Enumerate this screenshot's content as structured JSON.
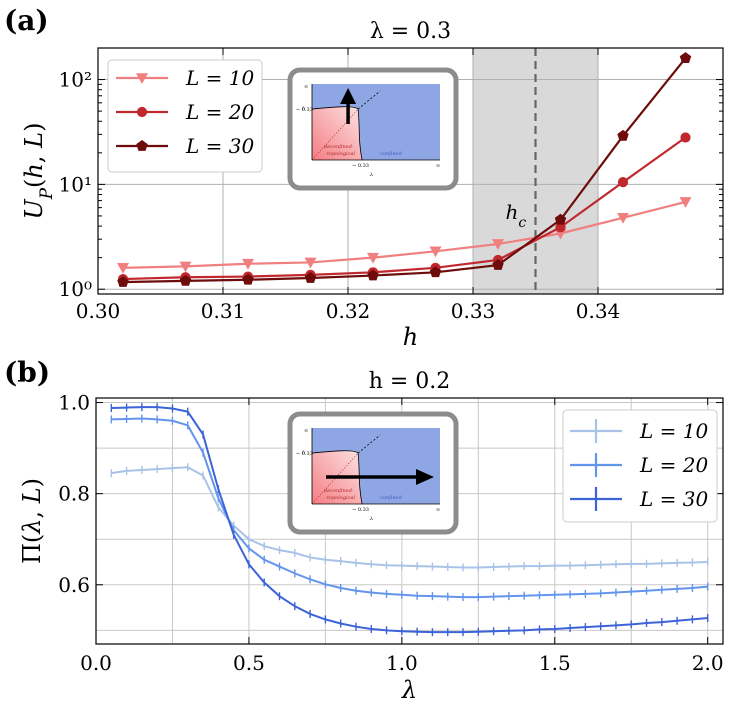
{
  "chart_data": [
    {
      "panel": "(a)",
      "type": "line",
      "title": "λ = 0.3",
      "xlabel": "h",
      "ylabel": "U_P(h, L)",
      "yscale": "log",
      "xlim": [
        0.3,
        0.35
      ],
      "ylim": [
        0.9,
        200
      ],
      "xticks": [
        "0.30",
        "0.31",
        "0.32",
        "0.33",
        "0.34"
      ],
      "xtick_values": [
        0.3,
        0.31,
        0.32,
        0.33,
        0.34
      ],
      "yticks": [
        "10⁰",
        "10¹",
        "10²"
      ],
      "ytick_values": [
        1,
        10,
        100
      ],
      "grid": true,
      "legend_position": "top-left",
      "shaded_band": [
        0.33,
        0.34
      ],
      "vline": {
        "x": 0.335,
        "label": "h_c"
      },
      "x": [
        0.302,
        0.307,
        0.312,
        0.317,
        0.322,
        0.327,
        0.332,
        0.337,
        0.342,
        0.347
      ],
      "series": [
        {
          "name": "L = 10",
          "marker": "triangle-down",
          "color": "#f08080",
          "values": [
            1.6,
            1.65,
            1.75,
            1.8,
            2.0,
            2.3,
            2.7,
            3.4,
            4.8,
            6.8
          ]
        },
        {
          "name": "L = 20",
          "marker": "circle",
          "color": "#c0282d",
          "values": [
            1.25,
            1.3,
            1.32,
            1.37,
            1.45,
            1.6,
            1.9,
            3.9,
            10.5,
            28
          ]
        },
        {
          "name": "L = 30",
          "marker": "pentagon",
          "color": "#6e0c0c",
          "values": [
            1.17,
            1.2,
            1.23,
            1.28,
            1.35,
            1.45,
            1.7,
            4.6,
            29,
            160
          ]
        }
      ],
      "inset": {
        "x_axis": "λ",
        "y_axis": "h",
        "x_tick": "∼ 0.33",
        "x_end": "∞",
        "y_tick": "∼ 0.33",
        "y_end": "∞",
        "region_left": "deconfined-topological",
        "region_left_line1": "deconfined-",
        "region_left_line2": "topological",
        "region_right": "confined",
        "arrow": "vertical"
      }
    },
    {
      "panel": "(b)",
      "type": "line",
      "title": "h = 0.2",
      "xlabel": "λ",
      "ylabel": "Π(λ, L)",
      "xlim": [
        0.0,
        2.05
      ],
      "ylim": [
        0.47,
        1.01
      ],
      "xticks": [
        "0.0",
        "0.5",
        "1.0",
        "1.5",
        "2.0"
      ],
      "xtick_values": [
        0.0,
        0.5,
        1.0,
        1.5,
        2.0
      ],
      "yticks": [
        "0.6",
        "0.8",
        "1.0"
      ],
      "ytick_values": [
        0.6,
        0.8,
        1.0
      ],
      "grid": true,
      "legend_position": "top-right",
      "series": [
        {
          "name": "L = 10",
          "color": "#a9c3e8",
          "x": [
            0.05,
            0.1,
            0.15,
            0.2,
            0.25,
            0.3,
            0.35,
            0.4,
            0.45,
            0.5,
            0.55,
            0.6,
            0.65,
            0.7,
            0.75,
            0.8,
            0.85,
            0.9,
            0.95,
            1.0,
            1.05,
            1.1,
            1.15,
            1.2,
            1.25,
            1.3,
            1.35,
            1.4,
            1.45,
            1.5,
            1.55,
            1.6,
            1.65,
            1.7,
            1.75,
            1.8,
            1.85,
            1.9,
            1.95,
            2.0
          ],
          "values": [
            0.845,
            0.85,
            0.852,
            0.854,
            0.856,
            0.858,
            0.84,
            0.77,
            0.73,
            0.7,
            0.685,
            0.676,
            0.67,
            0.66,
            0.655,
            0.652,
            0.648,
            0.645,
            0.643,
            0.642,
            0.641,
            0.64,
            0.639,
            0.638,
            0.638,
            0.639,
            0.64,
            0.641,
            0.641,
            0.642,
            0.642,
            0.643,
            0.644,
            0.645,
            0.646,
            0.646,
            0.647,
            0.648,
            0.649,
            0.65
          ]
        },
        {
          "name": "L = 20",
          "color": "#6495ed",
          "x": [
            0.05,
            0.1,
            0.15,
            0.2,
            0.25,
            0.3,
            0.35,
            0.4,
            0.45,
            0.5,
            0.55,
            0.6,
            0.65,
            0.7,
            0.75,
            0.8,
            0.85,
            0.9,
            0.95,
            1.0,
            1.05,
            1.1,
            1.15,
            1.2,
            1.25,
            1.3,
            1.35,
            1.4,
            1.45,
            1.5,
            1.55,
            1.6,
            1.65,
            1.7,
            1.75,
            1.8,
            1.85,
            1.9,
            1.95,
            2.0
          ],
          "values": [
            0.963,
            0.964,
            0.965,
            0.963,
            0.96,
            0.95,
            0.89,
            0.79,
            0.72,
            0.68,
            0.655,
            0.64,
            0.625,
            0.612,
            0.601,
            0.593,
            0.587,
            0.583,
            0.58,
            0.578,
            0.576,
            0.575,
            0.574,
            0.573,
            0.573,
            0.574,
            0.575,
            0.576,
            0.577,
            0.578,
            0.579,
            0.58,
            0.581,
            0.583,
            0.585,
            0.587,
            0.589,
            0.591,
            0.593,
            0.596
          ]
        },
        {
          "name": "L = 30",
          "color": "#3d63d8",
          "x": [
            0.05,
            0.1,
            0.15,
            0.2,
            0.25,
            0.3,
            0.35,
            0.4,
            0.45,
            0.5,
            0.55,
            0.6,
            0.65,
            0.7,
            0.75,
            0.8,
            0.85,
            0.9,
            0.95,
            1.0,
            1.05,
            1.1,
            1.15,
            1.2,
            1.25,
            1.3,
            1.35,
            1.4,
            1.45,
            1.5,
            1.55,
            1.6,
            1.65,
            1.7,
            1.75,
            1.8,
            1.85,
            1.9,
            1.95,
            2.0
          ],
          "values": [
            0.988,
            0.989,
            0.99,
            0.99,
            0.987,
            0.98,
            0.93,
            0.81,
            0.71,
            0.645,
            0.605,
            0.575,
            0.553,
            0.536,
            0.524,
            0.515,
            0.508,
            0.503,
            0.5,
            0.498,
            0.497,
            0.496,
            0.496,
            0.496,
            0.497,
            0.498,
            0.499,
            0.5,
            0.502,
            0.503,
            0.505,
            0.507,
            0.509,
            0.511,
            0.513,
            0.516,
            0.518,
            0.521,
            0.524,
            0.527
          ]
        }
      ],
      "inset": {
        "x_axis": "λ",
        "y_axis": "h",
        "x_tick": "∼ 0.33",
        "x_end": "∞",
        "y_tick": "∼ 0.33",
        "y_end": "∞",
        "region_left": "deconfined-topological",
        "region_left_line1": "deconfined-",
        "region_left_line2": "topological",
        "region_right": "confined",
        "arrow": "horizontal"
      }
    }
  ]
}
